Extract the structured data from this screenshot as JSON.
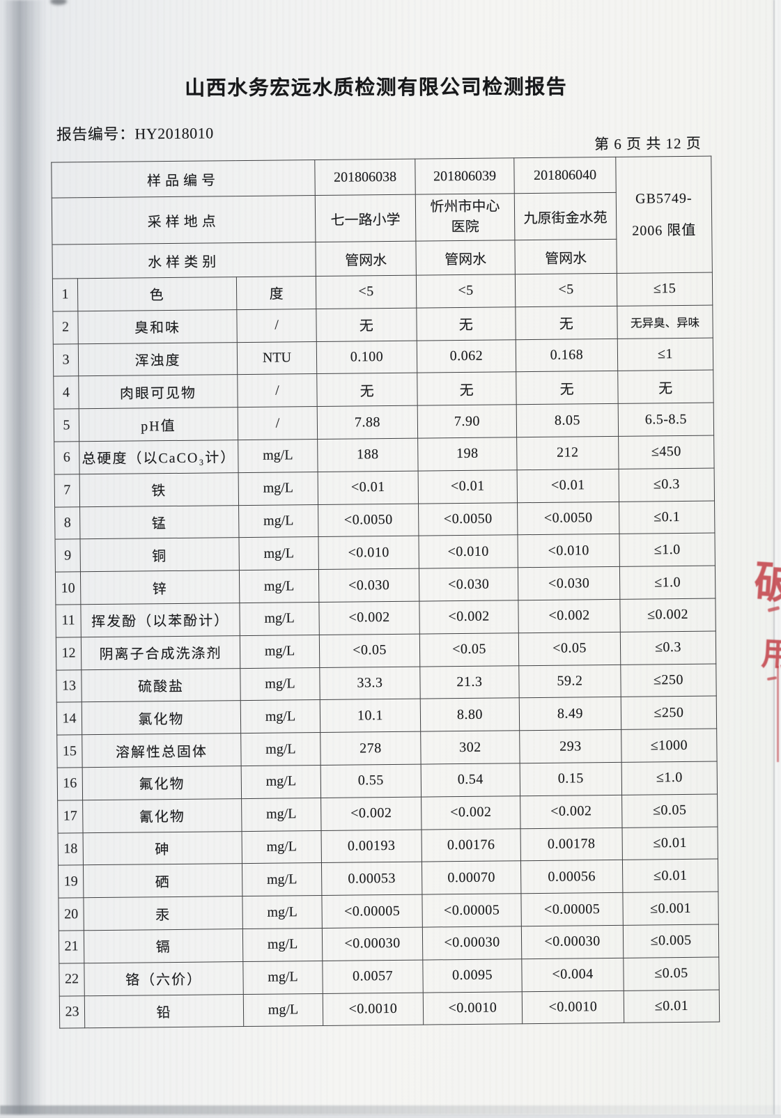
{
  "title": "山西水务宏远水质检测有限公司检测报告",
  "report_number_label": "报告编号：",
  "report_number": "HY2018010",
  "page_indicator": "第 6 页 共 12 页",
  "table": {
    "header_rows": [
      {
        "label": "样品编号",
        "values": [
          "201806038",
          "201806039",
          "201806040"
        ]
      },
      {
        "label": "采样地点",
        "values": [
          "七一路小学",
          "忻州市中心医院",
          "九原街金水苑"
        ]
      },
      {
        "label": "水样类别",
        "values": [
          "管网水",
          "管网水",
          "管网水"
        ]
      }
    ],
    "limit_header_lines": [
      "GB5749-",
      "2006 限值"
    ],
    "rows": [
      {
        "no": "1",
        "name": "色",
        "unit": "度",
        "values": [
          "<5",
          "<5",
          "<5"
        ],
        "limit": "≤15"
      },
      {
        "no": "2",
        "name": "臭和味",
        "unit": "/",
        "values": [
          "无",
          "无",
          "无"
        ],
        "limit": "无异臭、异味"
      },
      {
        "no": "3",
        "name": "浑浊度",
        "unit": "NTU",
        "values": [
          "0.100",
          "0.062",
          "0.168"
        ],
        "limit": "≤1"
      },
      {
        "no": "4",
        "name": "肉眼可见物",
        "unit": "/",
        "values": [
          "无",
          "无",
          "无"
        ],
        "limit": "无"
      },
      {
        "no": "5",
        "name": "pH值",
        "unit": "/",
        "values": [
          "7.88",
          "7.90",
          "8.05"
        ],
        "limit": "6.5-8.5"
      },
      {
        "no": "6",
        "name": "总硬度（以CaCO₃计）",
        "unit": "mg/L",
        "values": [
          "188",
          "198",
          "212"
        ],
        "limit": "≤450"
      },
      {
        "no": "7",
        "name": "铁",
        "unit": "mg/L",
        "values": [
          "<0.01",
          "<0.01",
          "<0.01"
        ],
        "limit": "≤0.3"
      },
      {
        "no": "8",
        "name": "锰",
        "unit": "mg/L",
        "values": [
          "<0.0050",
          "<0.0050",
          "<0.0050"
        ],
        "limit": "≤0.1"
      },
      {
        "no": "9",
        "name": "铜",
        "unit": "mg/L",
        "values": [
          "<0.010",
          "<0.010",
          "<0.010"
        ],
        "limit": "≤1.0"
      },
      {
        "no": "10",
        "name": "锌",
        "unit": "mg/L",
        "values": [
          "<0.030",
          "<0.030",
          "<0.030"
        ],
        "limit": "≤1.0"
      },
      {
        "no": "11",
        "name": "挥发酚（以苯酚计）",
        "unit": "mg/L",
        "values": [
          "<0.002",
          "<0.002",
          "<0.002"
        ],
        "limit": "≤0.002"
      },
      {
        "no": "12",
        "name": "阴离子合成洗涤剂",
        "unit": "mg/L",
        "values": [
          "<0.05",
          "<0.05",
          "<0.05"
        ],
        "limit": "≤0.3"
      },
      {
        "no": "13",
        "name": "硫酸盐",
        "unit": "mg/L",
        "values": [
          "33.3",
          "21.3",
          "59.2"
        ],
        "limit": "≤250"
      },
      {
        "no": "14",
        "name": "氯化物",
        "unit": "mg/L",
        "values": [
          "10.1",
          "8.80",
          "8.49"
        ],
        "limit": "≤250"
      },
      {
        "no": "15",
        "name": "溶解性总固体",
        "unit": "mg/L",
        "values": [
          "278",
          "302",
          "293"
        ],
        "limit": "≤1000"
      },
      {
        "no": "16",
        "name": "氟化物",
        "unit": "mg/L",
        "values": [
          "0.55",
          "0.54",
          "0.15"
        ],
        "limit": "≤1.0"
      },
      {
        "no": "17",
        "name": "氰化物",
        "unit": "mg/L",
        "values": [
          "<0.002",
          "<0.002",
          "<0.002"
        ],
        "limit": "≤0.05"
      },
      {
        "no": "18",
        "name": "砷",
        "unit": "mg/L",
        "values": [
          "0.00193",
          "0.00176",
          "0.00178"
        ],
        "limit": "≤0.01"
      },
      {
        "no": "19",
        "name": "硒",
        "unit": "mg/L",
        "values": [
          "0.00053",
          "0.00070",
          "0.00056"
        ],
        "limit": "≤0.01"
      },
      {
        "no": "20",
        "name": "汞",
        "unit": "mg/L",
        "values": [
          "<0.00005",
          "<0.00005",
          "<0.00005"
        ],
        "limit": "≤0.001"
      },
      {
        "no": "21",
        "name": "镉",
        "unit": "mg/L",
        "values": [
          "<0.00030",
          "<0.00030",
          "<0.00030"
        ],
        "limit": "≤0.005"
      },
      {
        "no": "22",
        "name": "铬（六价）",
        "unit": "mg/L",
        "values": [
          "0.0057",
          "0.0095",
          "<0.004"
        ],
        "limit": "≤0.05"
      },
      {
        "no": "23",
        "name": "铅",
        "unit": "mg/L",
        "values": [
          "<0.0010",
          "<0.0010",
          "<0.0010"
        ],
        "limit": "≤0.01"
      }
    ]
  },
  "stamp": {
    "color": "#c23a41",
    "fragments": [
      "破",
      "用"
    ]
  }
}
